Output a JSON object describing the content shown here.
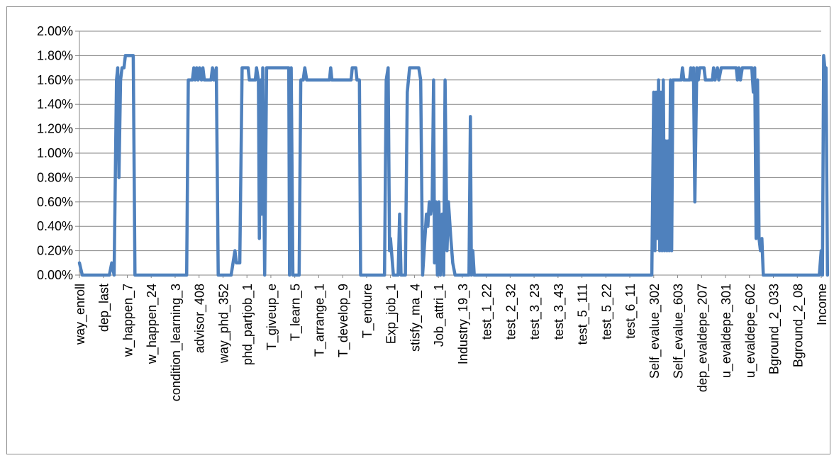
{
  "chart_data": {
    "type": "line",
    "title": "",
    "xlabel": "",
    "ylabel": "",
    "ylim": [
      0,
      0.02
    ],
    "grid": true,
    "legend": "none",
    "y_ticks": [
      "0.00%",
      "0.20%",
      "0.40%",
      "0.60%",
      "0.80%",
      "1.00%",
      "1.20%",
      "1.40%",
      "1.60%",
      "1.80%",
      "2.00%"
    ],
    "categories": [
      "way_enroll",
      "dep_last",
      "w_happen_7",
      "w_happen_24",
      "condition_learning_3",
      "advisor_408",
      "way_phd_352",
      "phd_partjob_1",
      "T_giveup_e",
      "T_learn_5",
      "T_arrange_1",
      "T_develop_9",
      "T_endure",
      "Exp_job_1",
      "stisfy_ma_4",
      "Job_attri_1",
      "Industry_19_3",
      "test_1_22",
      "test_2_32",
      "test_3_23",
      "test_3_43",
      "test_5_111",
      "test_5_22",
      "test_6_11",
      "Self_evalue_302",
      "Self_evalue_603",
      "dep_evaldepe_207",
      "u_evaldepe_301",
      "u_evaldepe_602",
      "Bground_2_033",
      "Bground_2_08",
      "Income"
    ],
    "series": [
      {
        "color": "#4f81bd",
        "points": [
          [
            0,
            0.001
          ],
          [
            0.12,
            0.0
          ],
          [
            1.25,
            0.0
          ],
          [
            1.35,
            0.001
          ],
          [
            1.45,
            0.0
          ],
          [
            1.55,
            0.016
          ],
          [
            1.6,
            0.017
          ],
          [
            1.65,
            0.008
          ],
          [
            1.72,
            0.016
          ],
          [
            1.78,
            0.017
          ],
          [
            1.86,
            0.017
          ],
          [
            1.92,
            0.018
          ],
          [
            2.25,
            0.018
          ],
          [
            2.32,
            0.0
          ],
          [
            4.48,
            0.0
          ],
          [
            4.55,
            0.016
          ],
          [
            4.72,
            0.016
          ],
          [
            4.78,
            0.017
          ],
          [
            4.84,
            0.016
          ],
          [
            4.9,
            0.017
          ],
          [
            4.96,
            0.016
          ],
          [
            5.02,
            0.017
          ],
          [
            5.1,
            0.016
          ],
          [
            5.16,
            0.017
          ],
          [
            5.22,
            0.016
          ],
          [
            5.5,
            0.016
          ],
          [
            5.56,
            0.017
          ],
          [
            5.62,
            0.016
          ],
          [
            5.72,
            0.017
          ],
          [
            5.8,
            0.0
          ],
          [
            6.34,
            0.0
          ],
          [
            6.5,
            0.002
          ],
          [
            6.56,
            0.001
          ],
          [
            6.7,
            0.001
          ],
          [
            6.8,
            0.017
          ],
          [
            7.05,
            0.017
          ],
          [
            7.1,
            0.016
          ],
          [
            7.35,
            0.016
          ],
          [
            7.4,
            0.017
          ],
          [
            7.48,
            0.016
          ],
          [
            7.52,
            0.003
          ],
          [
            7.58,
            0.016
          ],
          [
            7.62,
            0.005
          ],
          [
            7.66,
            0.017
          ],
          [
            7.74,
            0.0
          ],
          [
            7.82,
            0.017
          ],
          [
            8.75,
            0.017
          ],
          [
            8.78,
            0.0
          ],
          [
            8.85,
            0.017
          ],
          [
            8.92,
            0.0
          ],
          [
            9.18,
            0.0
          ],
          [
            9.25,
            0.016
          ],
          [
            9.35,
            0.016
          ],
          [
            9.42,
            0.017
          ],
          [
            9.5,
            0.016
          ],
          [
            10.45,
            0.016
          ],
          [
            10.5,
            0.017
          ],
          [
            10.55,
            0.016
          ],
          [
            11.35,
            0.016
          ],
          [
            11.4,
            0.017
          ],
          [
            11.55,
            0.017
          ],
          [
            11.6,
            0.016
          ],
          [
            11.7,
            0.016
          ],
          [
            11.75,
            0.0
          ],
          [
            12.75,
            0.0
          ],
          [
            12.82,
            0.016
          ],
          [
            12.9,
            0.017
          ],
          [
            12.96,
            0.002
          ],
          [
            13.0,
            0.003
          ],
          [
            13.12,
            0.0
          ],
          [
            13.32,
            0.0
          ],
          [
            13.38,
            0.005
          ],
          [
            13.44,
            0.0
          ],
          [
            13.62,
            0.0
          ],
          [
            13.7,
            0.015
          ],
          [
            13.8,
            0.017
          ],
          [
            14.18,
            0.017
          ],
          [
            14.26,
            0.016
          ],
          [
            14.34,
            0.0
          ],
          [
            14.5,
            0.005
          ],
          [
            14.56,
            0.004
          ],
          [
            14.62,
            0.006
          ],
          [
            14.68,
            0.005
          ],
          [
            14.74,
            0.006
          ],
          [
            14.8,
            0.016
          ],
          [
            14.84,
            0.001
          ],
          [
            14.9,
            0.006
          ],
          [
            14.96,
            0.0
          ],
          [
            15.02,
            0.006
          ],
          [
            15.08,
            0.0
          ],
          [
            15.16,
            0.005
          ],
          [
            15.22,
            0.0
          ],
          [
            15.28,
            0.016
          ],
          [
            15.36,
            0.002
          ],
          [
            15.42,
            0.006
          ],
          [
            15.52,
            0.003
          ],
          [
            15.6,
            0.001
          ],
          [
            15.7,
            0.0
          ],
          [
            16.28,
            0.0
          ],
          [
            16.34,
            0.013
          ],
          [
            16.38,
            0.0
          ],
          [
            16.44,
            0.002
          ],
          [
            16.5,
            0.0
          ],
          [
            23.92,
            0.0
          ],
          [
            24.0,
            0.015
          ],
          [
            24.05,
            0.002
          ],
          [
            24.1,
            0.015
          ],
          [
            24.15,
            0.003
          ],
          [
            24.2,
            0.016
          ],
          [
            24.25,
            0.002
          ],
          [
            24.3,
            0.015
          ],
          [
            24.35,
            0.002
          ],
          [
            24.4,
            0.016
          ],
          [
            24.45,
            0.002
          ],
          [
            24.5,
            0.011
          ],
          [
            24.55,
            0.002
          ],
          [
            24.6,
            0.011
          ],
          [
            24.65,
            0.002
          ],
          [
            24.7,
            0.016
          ],
          [
            24.75,
            0.002
          ],
          [
            24.8,
            0.016
          ],
          [
            25.15,
            0.016
          ],
          [
            25.2,
            0.017
          ],
          [
            25.26,
            0.016
          ],
          [
            25.5,
            0.016
          ],
          [
            25.55,
            0.017
          ],
          [
            25.6,
            0.016
          ],
          [
            25.66,
            0.017
          ],
          [
            25.72,
            0.006
          ],
          [
            25.8,
            0.017
          ],
          [
            25.86,
            0.016
          ],
          [
            25.92,
            0.017
          ],
          [
            26.1,
            0.017
          ],
          [
            26.16,
            0.016
          ],
          [
            26.45,
            0.016
          ],
          [
            26.5,
            0.017
          ],
          [
            26.56,
            0.016
          ],
          [
            26.66,
            0.017
          ],
          [
            26.72,
            0.016
          ],
          [
            26.82,
            0.017
          ],
          [
            27.45,
            0.017
          ],
          [
            27.5,
            0.016
          ],
          [
            27.56,
            0.017
          ],
          [
            27.62,
            0.016
          ],
          [
            27.7,
            0.017
          ],
          [
            28.1,
            0.017
          ],
          [
            28.16,
            0.015
          ],
          [
            28.22,
            0.017
          ],
          [
            28.28,
            0.003
          ],
          [
            28.34,
            0.016
          ],
          [
            28.4,
            0.003
          ],
          [
            28.46,
            0.002
          ],
          [
            28.52,
            0.003
          ],
          [
            28.58,
            0.0
          ],
          [
            30.92,
            0.0
          ],
          [
            31.0,
            0.002
          ],
          [
            31.05,
            0.0
          ],
          [
            31.1,
            0.018
          ],
          [
            31.15,
            0.017
          ],
          [
            31.2,
            0.017
          ],
          [
            31.26,
            0.0
          ]
        ]
      }
    ]
  }
}
